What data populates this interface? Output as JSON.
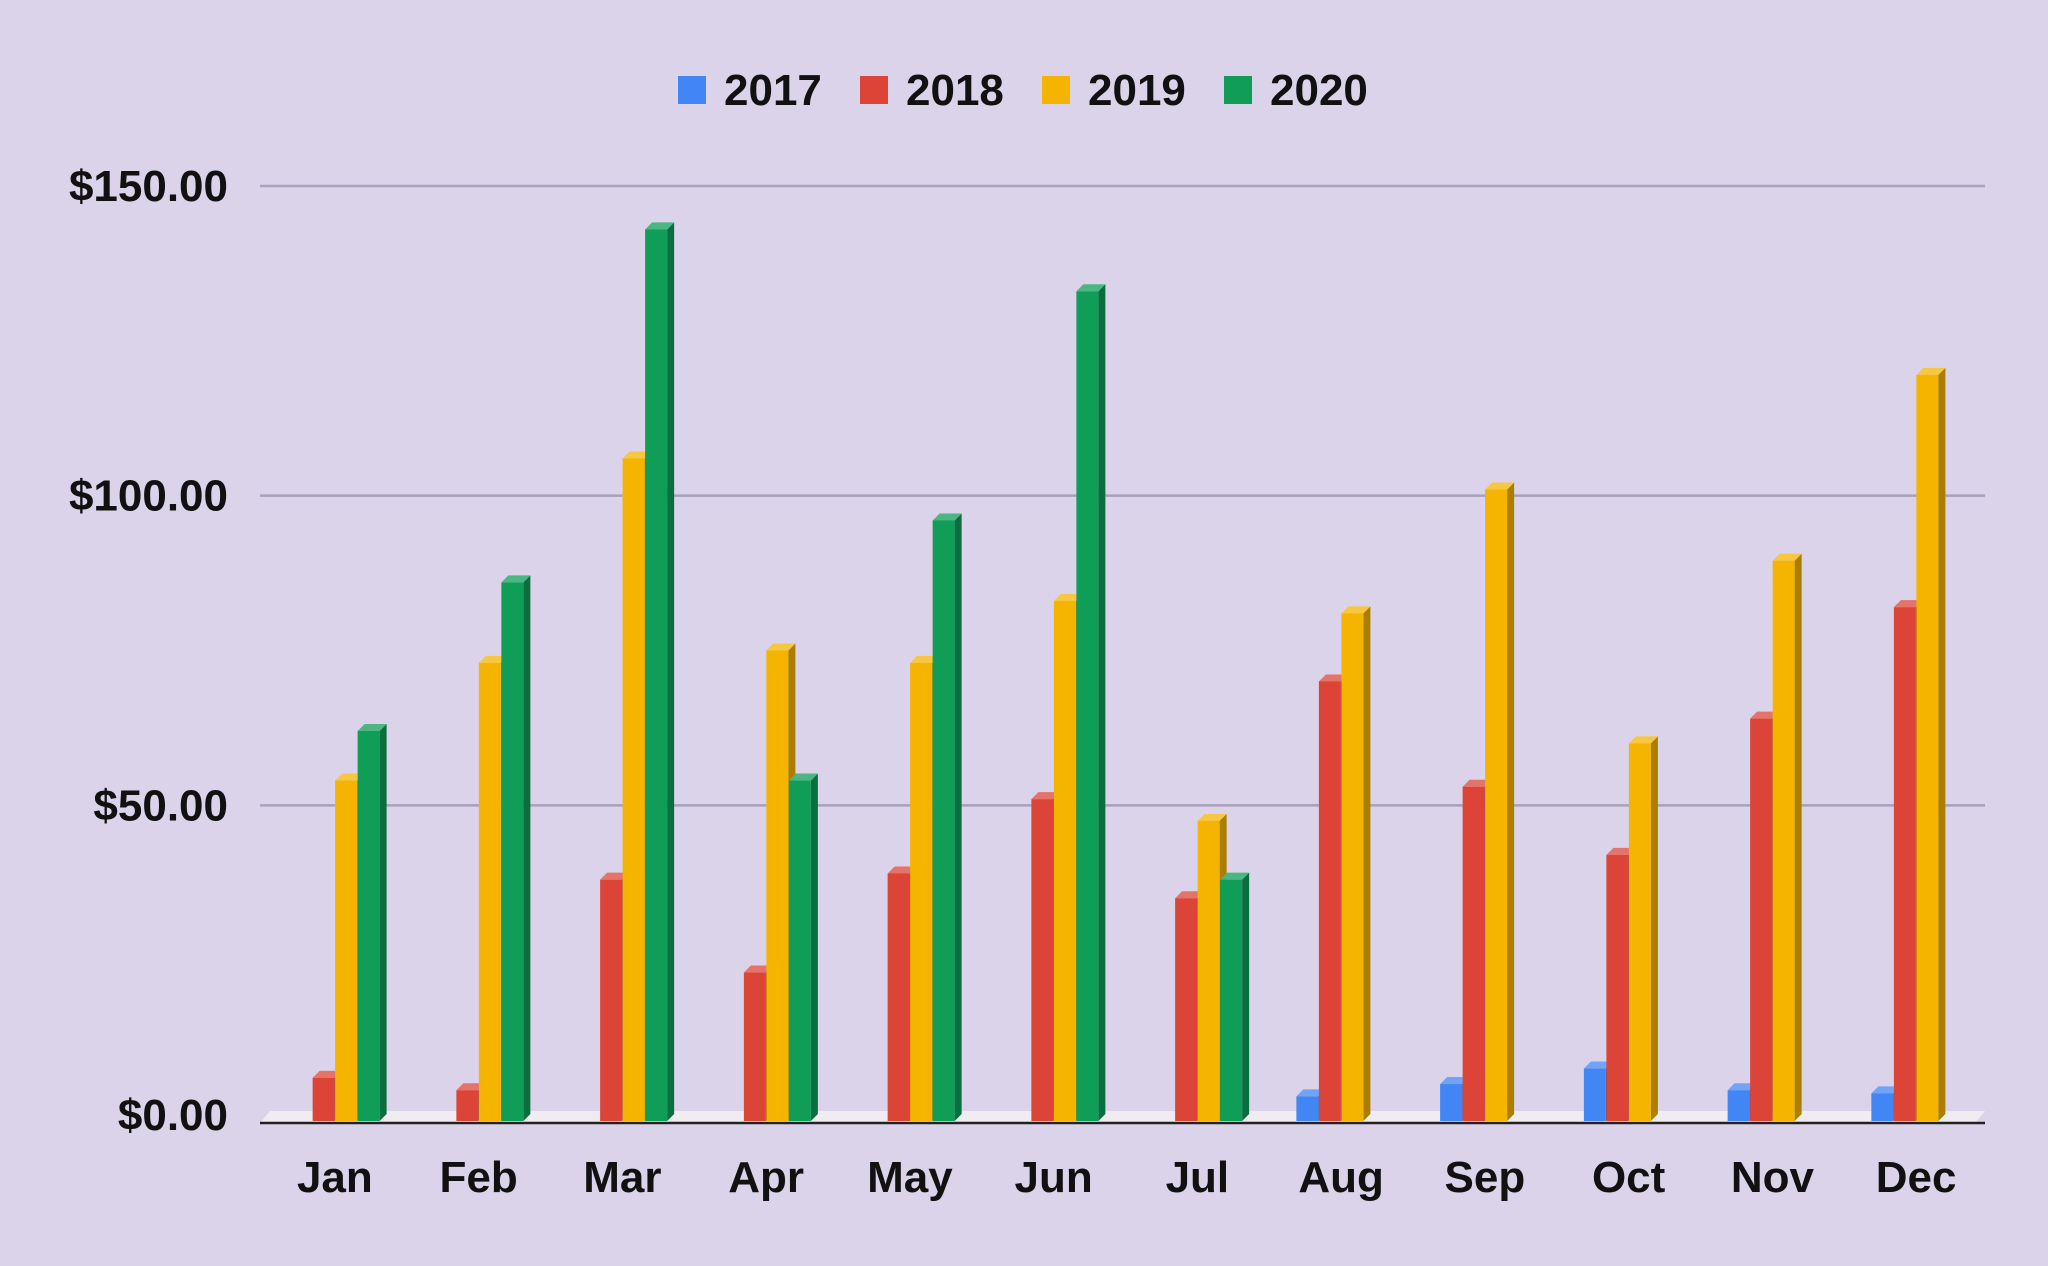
{
  "chart_data": {
    "type": "bar",
    "style": "3d-clustered-column",
    "categories": [
      "Jan",
      "Feb",
      "Mar",
      "Apr",
      "May",
      "Jun",
      "Jul",
      "Aug",
      "Sep",
      "Oct",
      "Nov",
      "Dec"
    ],
    "series": [
      {
        "name": "2017",
        "color": "#4285f4",
        "values": [
          0,
          0,
          0,
          0,
          0,
          0,
          0,
          3,
          5,
          7.5,
          4,
          3.5
        ]
      },
      {
        "name": "2018",
        "color": "#db4437",
        "values": [
          6,
          4,
          38,
          23,
          39,
          51,
          35,
          70,
          53,
          42,
          64,
          82
        ]
      },
      {
        "name": "2019",
        "color": "#f4b400",
        "values": [
          54,
          73,
          106,
          75,
          73,
          83,
          47.5,
          81,
          101,
          60,
          89.5,
          119.5
        ]
      },
      {
        "name": "2020",
        "color": "#0f9d58",
        "values": [
          62,
          86,
          143,
          54,
          96,
          133,
          38,
          0,
          0,
          0,
          0,
          0
        ]
      }
    ],
    "yticks": [
      "$0.00",
      "$50.00",
      "$100.00",
      "$150.00"
    ],
    "ytick_values": [
      0,
      50,
      100,
      150
    ],
    "ylim": [
      0,
      150
    ],
    "title": "",
    "xlabel": "",
    "ylabel": "",
    "grid": true,
    "legend_position": "top-center"
  }
}
